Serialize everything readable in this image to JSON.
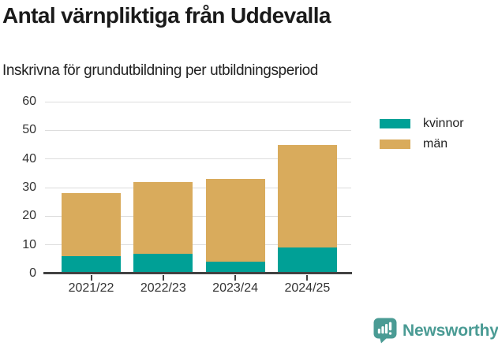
{
  "header": {
    "title": "Antal värnpliktiga från Uddevalla",
    "subtitle": "Inskrivna för grundutbildning per utbildningsperiod"
  },
  "chart_data": {
    "type": "bar",
    "stacked": true,
    "title": "Antal värnpliktiga från Uddevalla",
    "subtitle": "Inskrivna för grundutbildning per utbildningsperiod",
    "categories": [
      "2021/22",
      "2022/23",
      "2023/24",
      "2024/25"
    ],
    "series": [
      {
        "name": "kvinnor",
        "color": "#00a096",
        "values": [
          6,
          7,
          4,
          9
        ]
      },
      {
        "name": "män",
        "color": "#d9ab5c",
        "values": [
          22,
          25,
          29,
          36
        ]
      }
    ],
    "totals": [
      28,
      32,
      33,
      45
    ],
    "xlabel": "",
    "ylabel": "",
    "ylim": [
      0,
      60
    ],
    "yticks": [
      0,
      10,
      20,
      30,
      40,
      50,
      60
    ],
    "grid": true,
    "legend_position": "right"
  },
  "footer": {
    "brand": "Newsworthy"
  },
  "colors": {
    "bar_kvinnor": "#00a096",
    "bar_man": "#d9ab5c",
    "grid": "#dcdcdc",
    "axis": "#424242",
    "tick_text": "#333333",
    "title_text": "#1a1a1a",
    "brand_teal": "#4a9b94"
  }
}
